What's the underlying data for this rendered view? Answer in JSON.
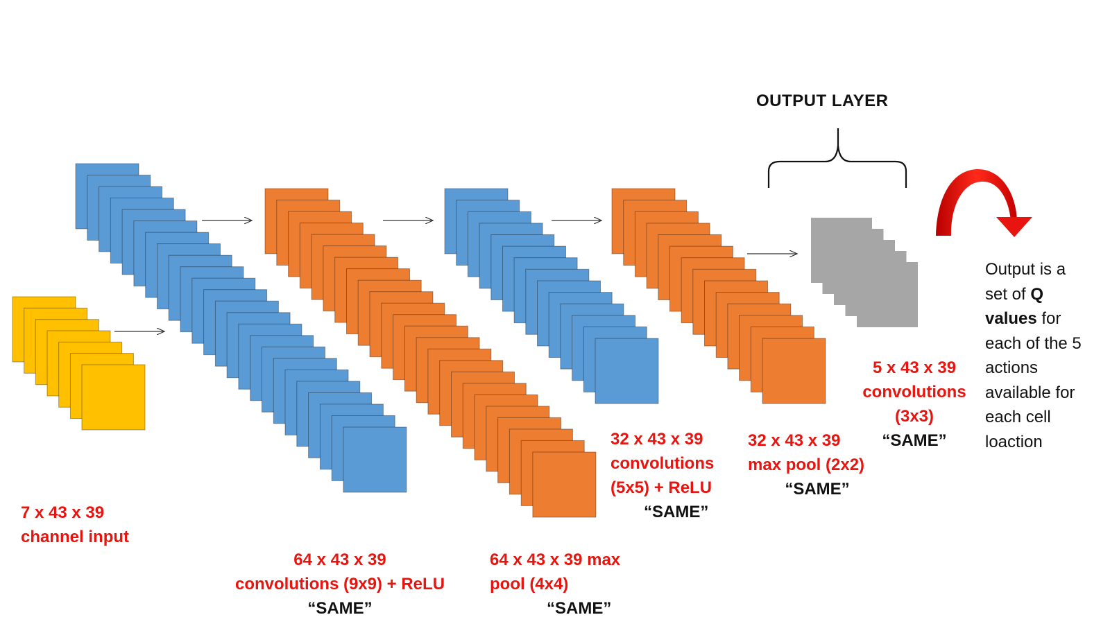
{
  "colors": {
    "input": "#ffc000",
    "conv": "#5b9bd5",
    "pool": "#ed7d31",
    "output": "#a6a6a6",
    "label_red": "#e8140f",
    "text": "#111111",
    "arrow_red": "#e8140f"
  },
  "stacks": [
    {
      "id": "input",
      "count": 7,
      "color_key": "input"
    },
    {
      "id": "conv1",
      "count": 24,
      "color_key": "conv"
    },
    {
      "id": "pool1",
      "count": 24,
      "color_key": "pool"
    },
    {
      "id": "conv2",
      "count": 14,
      "color_key": "conv"
    },
    {
      "id": "pool2",
      "count": 14,
      "color_key": "pool"
    },
    {
      "id": "output",
      "count": 5,
      "color_key": "output"
    }
  ],
  "labels": {
    "input": {
      "lines": [
        "7 x 43 x 39",
        "channel input"
      ]
    },
    "conv1": {
      "lines": [
        "64 x 43 x 39",
        "convolutions (9x9) + ReLU"
      ],
      "same": "“SAME”"
    },
    "pool1": {
      "lines": [
        "64 x 43 x 39 max",
        "pool (4x4)"
      ],
      "same": "“SAME”"
    },
    "conv2": {
      "lines": [
        "32 x 43 x 39",
        "convolutions",
        "(5x5) + ReLU"
      ],
      "same": "“SAME”"
    },
    "pool2": {
      "lines": [
        "32 x 43 x 39",
        "max pool (2x2)"
      ],
      "same": "“SAME”"
    },
    "output": {
      "lines": [
        "5 x 43 x 39",
        "convolutions",
        "(3x3)"
      ],
      "same": "“SAME”"
    }
  },
  "output_layer_title": "OUTPUT LAYER",
  "output_description": {
    "line1": "Output is a",
    "line2_pre": "set of ",
    "line2_bold": "Q",
    "line3_bold": "values",
    "line3_post": " for",
    "line4": "each of the 5",
    "line5": "actions",
    "line6": "available for",
    "line7": "each cell",
    "line8": "loaction"
  }
}
